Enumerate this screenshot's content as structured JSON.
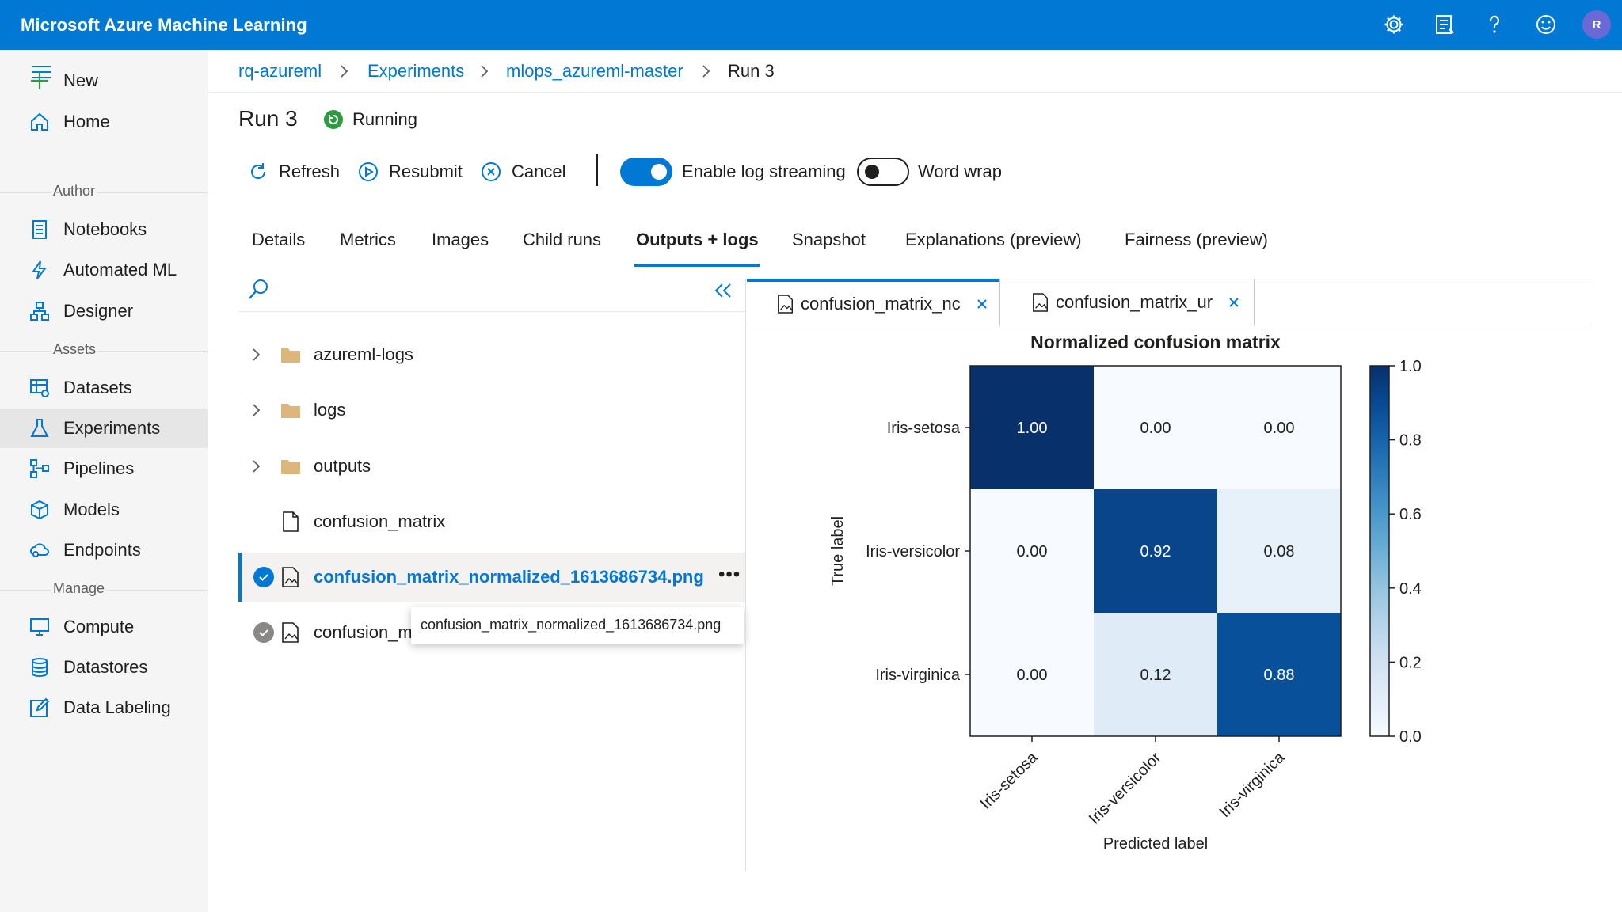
{
  "app": {
    "title": "Microsoft Azure Machine Learning",
    "avatar_initial": "R"
  },
  "topbar_icons": [
    "gear-icon",
    "feedback-list-icon",
    "help-icon",
    "smiley-icon"
  ],
  "sidebar": {
    "items": [
      {
        "label": "New",
        "icon": "plus-icon"
      },
      {
        "label": "Home",
        "icon": "home-icon"
      },
      {
        "section": "Author"
      },
      {
        "label": "Notebooks",
        "icon": "notebook-icon"
      },
      {
        "label": "Automated ML",
        "icon": "lightning-icon"
      },
      {
        "label": "Designer",
        "icon": "designer-icon"
      },
      {
        "section": "Assets"
      },
      {
        "label": "Datasets",
        "icon": "dataset-icon"
      },
      {
        "label": "Experiments",
        "icon": "flask-icon",
        "active": true
      },
      {
        "label": "Pipelines",
        "icon": "pipeline-icon"
      },
      {
        "label": "Models",
        "icon": "cube-icon"
      },
      {
        "label": "Endpoints",
        "icon": "cloud-icon"
      },
      {
        "section": "Manage"
      },
      {
        "label": "Compute",
        "icon": "monitor-icon"
      },
      {
        "label": "Datastores",
        "icon": "database-icon"
      },
      {
        "label": "Data Labeling",
        "icon": "edit-icon"
      }
    ]
  },
  "breadcrumb": [
    "rq-azureml",
    "Experiments",
    "mlops_azureml-master",
    "Run 3"
  ],
  "run": {
    "title": "Run 3",
    "status": "Running"
  },
  "toolbar": {
    "refresh": "Refresh",
    "resubmit": "Resubmit",
    "cancel": "Cancel",
    "log_streaming": "Enable log streaming",
    "log_streaming_on": true,
    "word_wrap": "Word wrap",
    "word_wrap_on": false
  },
  "tabs": [
    "Details",
    "Metrics",
    "Images",
    "Child runs",
    "Outputs + logs",
    "Snapshot",
    "Explanations (preview)",
    "Fairness (preview)"
  ],
  "active_tab": "Outputs + logs",
  "file_tree": [
    {
      "label": "azureml-logs",
      "type": "folder"
    },
    {
      "label": "logs",
      "type": "folder"
    },
    {
      "label": "outputs",
      "type": "folder"
    },
    {
      "label": "confusion_matrix",
      "type": "file"
    },
    {
      "label": "confusion_matrix_normalized_1613686734.png",
      "type": "image",
      "selected": true
    },
    {
      "label": "confusion_m",
      "type": "image"
    }
  ],
  "tooltip": "confusion_matrix_normalized_1613686734.png",
  "image_tabs": [
    {
      "label": "confusion_matrix_nc",
      "active": true
    },
    {
      "label": "confusion_matrix_ur",
      "active": false
    }
  ],
  "colors": {
    "accent": "#0078d4",
    "topbar": "#0078d4",
    "running": "#2d9b3f"
  },
  "chart_data": {
    "type": "heatmap",
    "title": "Normalized confusion matrix",
    "xlabel": "Predicted label",
    "ylabel": "True label",
    "x_categories": [
      "Iris-setosa",
      "Iris-versicolor",
      "Iris-virginica"
    ],
    "y_categories": [
      "Iris-setosa",
      "Iris-versicolor",
      "Iris-virginica"
    ],
    "values": [
      [
        1.0,
        0.0,
        0.0
      ],
      [
        0.0,
        0.92,
        0.08
      ],
      [
        0.0,
        0.12,
        0.88
      ]
    ],
    "value_labels": [
      [
        "1.00",
        "0.00",
        "0.00"
      ],
      [
        "0.00",
        "0.92",
        "0.08"
      ],
      [
        "0.00",
        "0.12",
        "0.88"
      ]
    ],
    "colorbar_range": [
      0.0,
      1.0
    ],
    "colorbar_ticks": [
      "0.0",
      "0.2",
      "0.4",
      "0.6",
      "0.8",
      "1.0"
    ],
    "colormap": "Blues"
  }
}
